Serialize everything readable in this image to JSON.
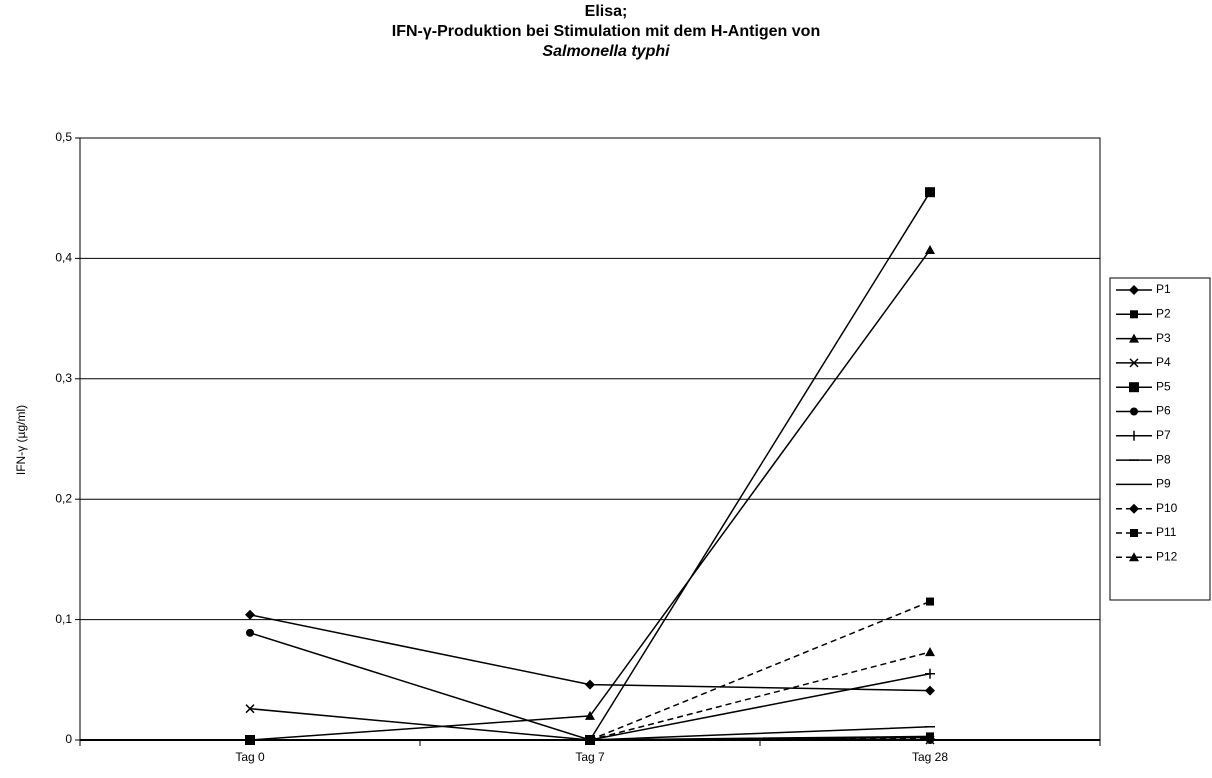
{
  "chart_data": {
    "type": "line",
    "title": [
      "Elisa;",
      "IFN-γ-Produktion bei Stimulation mit dem H-Antigen von",
      "Salmonella typhi"
    ],
    "y_label": "IFN-γ (µg/ml)",
    "categories": [
      "Tag 0",
      "Tag 7",
      "Tag 28"
    ],
    "ylim": [
      0,
      0.5
    ],
    "yticks": [
      0,
      {
        "value": 0.1,
        "label": "0,1"
      },
      {
        "value": 0.2,
        "label": "0,2"
      },
      {
        "value": 0.3,
        "label": "0,3"
      },
      {
        "value": 0.4,
        "label": "0,4"
      },
      {
        "value": 0.5,
        "label": "0,5"
      }
    ],
    "grid": true,
    "legend": "right",
    "series": [
      {
        "name": "P1",
        "color": "#000000",
        "marker": "diamond",
        "dash": false,
        "values": [
          0.104,
          0.046,
          0.041
        ]
      },
      {
        "name": "P2",
        "color": "#000000",
        "marker": "square",
        "dash": false,
        "values": [
          0,
          0,
          0.003
        ]
      },
      {
        "name": "P3",
        "color": "#000000",
        "marker": "triangle",
        "dash": false,
        "values": [
          0,
          0.02,
          0.407
        ]
      },
      {
        "name": "P4",
        "color": "#000000",
        "marker": "x",
        "dash": false,
        "values": [
          0.026,
          0,
          0
        ]
      },
      {
        "name": "P5",
        "color": "#000000",
        "marker": "bigsquare",
        "dash": false,
        "values": [
          0,
          0,
          0.455
        ]
      },
      {
        "name": "P6",
        "color": "#000000",
        "marker": "circle",
        "dash": false,
        "values": [
          0.089,
          0,
          0
        ]
      },
      {
        "name": "P7",
        "color": "#000000",
        "marker": "plus",
        "dash": false,
        "values": [
          0,
          0,
          0.055
        ]
      },
      {
        "name": "P8",
        "color": "#000000",
        "marker": "dash",
        "dash": false,
        "values": [
          0,
          0,
          0.011
        ]
      },
      {
        "name": "P9",
        "color": "#000000",
        "marker": "none",
        "dash": false,
        "values": [
          0,
          0,
          0.002
        ]
      },
      {
        "name": "P10",
        "color": "#000000",
        "marker": "diamond",
        "dash": true,
        "values": [
          0,
          0,
          0.001
        ]
      },
      {
        "name": "P11",
        "color": "#000000",
        "marker": "square",
        "dash": true,
        "values": [
          0,
          0,
          0.115
        ]
      },
      {
        "name": "P12",
        "color": "#000000",
        "marker": "triangle",
        "dash": true,
        "values": [
          0,
          0,
          0.073
        ]
      }
    ]
  }
}
